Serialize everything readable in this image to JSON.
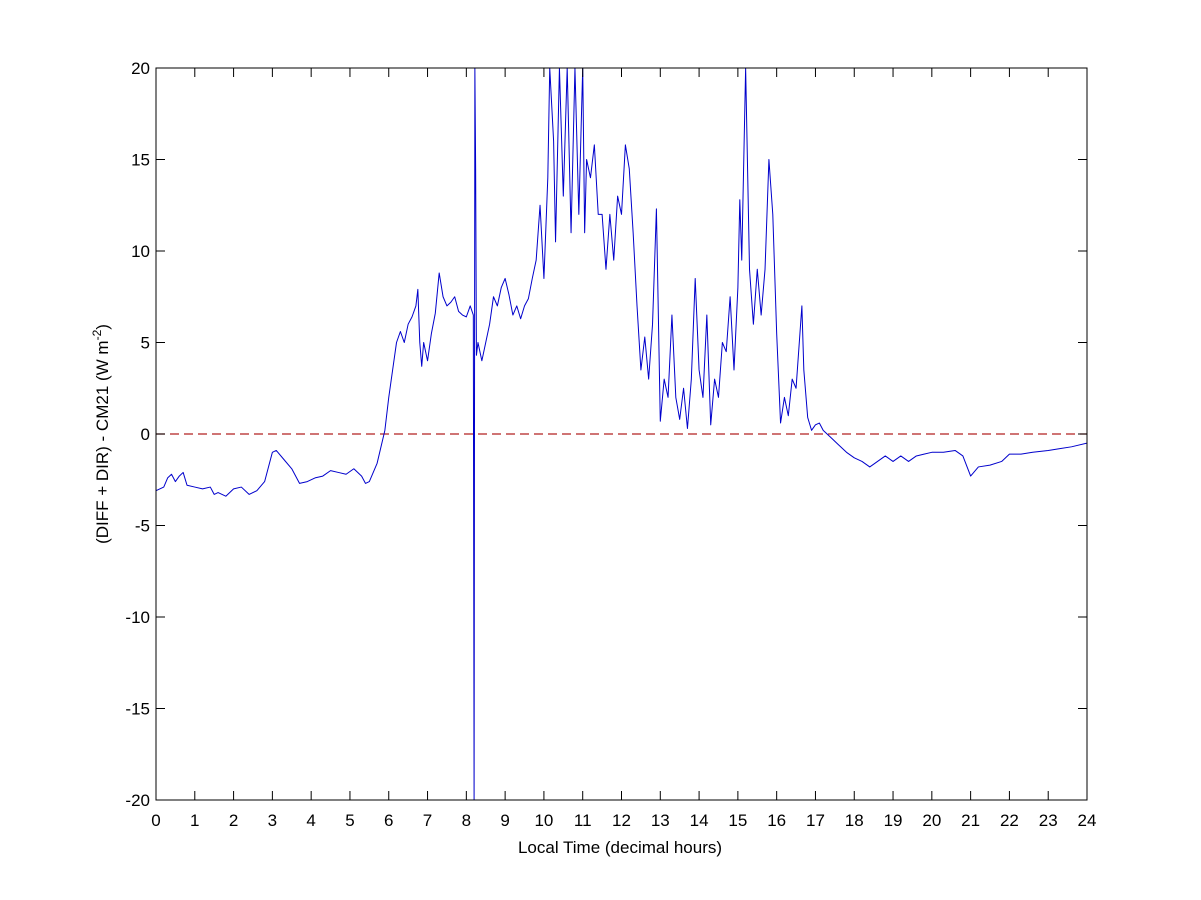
{
  "chart_data": {
    "type": "line",
    "xlabel": "Local Time (decimal hours)",
    "ylabel": {
      "text": "(DIFF + DIR) - CM21 (W m",
      "superscript": "-2",
      "suffix": ")"
    },
    "xlim": [
      0,
      24
    ],
    "ylim": [
      -20,
      20
    ],
    "xticks": [
      0,
      1,
      2,
      3,
      4,
      5,
      6,
      7,
      8,
      9,
      10,
      11,
      12,
      13,
      14,
      15,
      16,
      17,
      18,
      19,
      20,
      21,
      22,
      23,
      24
    ],
    "yticks": [
      -20,
      -15,
      -10,
      -5,
      0,
      5,
      10,
      15,
      20
    ],
    "reference_line": {
      "value": 0,
      "color": "#b22222",
      "style": "dashed"
    },
    "series": [
      {
        "color": "#0000cc",
        "x": [
          0,
          0.2,
          0.3,
          0.4,
          0.5,
          0.6,
          0.7,
          0.8,
          1.0,
          1.2,
          1.4,
          1.5,
          1.6,
          1.8,
          2.0,
          2.2,
          2.4,
          2.6,
          2.8,
          3.0,
          3.1,
          3.3,
          3.5,
          3.7,
          3.9,
          4.1,
          4.3,
          4.5,
          4.7,
          4.9,
          5.1,
          5.3,
          5.4,
          5.5,
          5.7,
          5.9,
          6.0,
          6.1,
          6.2,
          6.3,
          6.4,
          6.5,
          6.6,
          6.7,
          6.75,
          6.8,
          6.85,
          6.9,
          7.0,
          7.1,
          7.2,
          7.3,
          7.4,
          7.5,
          7.6,
          7.7,
          7.8,
          7.9,
          8.0,
          8.1,
          8.18,
          8.2,
          8.22,
          8.24,
          8.26,
          8.3,
          8.4,
          8.5,
          8.6,
          8.7,
          8.8,
          8.9,
          9.0,
          9.1,
          9.2,
          9.3,
          9.4,
          9.5,
          9.6,
          9.7,
          9.8,
          9.9,
          10.0,
          10.1,
          10.15,
          10.25,
          10.3,
          10.4,
          10.5,
          10.6,
          10.7,
          10.8,
          10.9,
          11.0,
          11.05,
          11.1,
          11.2,
          11.3,
          11.4,
          11.5,
          11.6,
          11.7,
          11.8,
          11.9,
          12.0,
          12.1,
          12.2,
          12.3,
          12.4,
          12.5,
          12.6,
          12.7,
          12.8,
          12.9,
          13.0,
          13.1,
          13.2,
          13.3,
          13.4,
          13.5,
          13.6,
          13.7,
          13.8,
          13.9,
          14.0,
          14.1,
          14.2,
          14.3,
          14.4,
          14.5,
          14.6,
          14.7,
          14.8,
          14.9,
          15.0,
          15.05,
          15.1,
          15.2,
          15.3,
          15.4,
          15.5,
          15.6,
          15.7,
          15.8,
          15.9,
          16.0,
          16.1,
          16.2,
          16.3,
          16.4,
          16.5,
          16.6,
          16.65,
          16.7,
          16.8,
          16.9,
          17.0,
          17.1,
          17.2,
          17.4,
          17.6,
          17.8,
          18.0,
          18.2,
          18.4,
          18.6,
          18.8,
          19.0,
          19.2,
          19.4,
          19.6,
          19.8,
          20.0,
          20.3,
          20.6,
          20.8,
          21.0,
          21.2,
          21.5,
          21.8,
          22.0,
          22.3,
          22.6,
          23.0,
          23.3,
          23.6,
          24.0
        ],
        "values": [
          -3.1,
          -2.9,
          -2.4,
          -2.2,
          -2.6,
          -2.3,
          -2.1,
          -2.8,
          -2.9,
          -3.0,
          -2.9,
          -3.3,
          -3.2,
          -3.4,
          -3.0,
          -2.9,
          -3.3,
          -3.1,
          -2.6,
          -1.0,
          -0.9,
          -1.4,
          -1.9,
          -2.7,
          -2.6,
          -2.4,
          -2.3,
          -2.0,
          -2.1,
          -2.2,
          -1.9,
          -2.3,
          -2.7,
          -2.6,
          -1.6,
          0.2,
          2.0,
          3.5,
          5.0,
          5.6,
          5.0,
          6.0,
          6.4,
          7.0,
          7.9,
          5.0,
          3.7,
          5.0,
          4.0,
          5.5,
          6.6,
          8.8,
          7.5,
          7.0,
          7.2,
          7.5,
          6.7,
          6.5,
          6.4,
          7.0,
          6.5,
          -20,
          20,
          14.5,
          4.3,
          5.0,
          4.0,
          5.0,
          6.0,
          7.5,
          7.0,
          8.0,
          8.5,
          7.6,
          6.5,
          7.0,
          6.3,
          7.0,
          7.4,
          8.5,
          9.5,
          12.5,
          8.5,
          14.0,
          20,
          16,
          10.5,
          20,
          13,
          20,
          11,
          20,
          12,
          20,
          11,
          15,
          14,
          15.8,
          12,
          12,
          9.0,
          12,
          9.5,
          13,
          12,
          15.8,
          14.5,
          11,
          7.0,
          3.5,
          5.3,
          3.0,
          6.0,
          12.3,
          0.7,
          3.0,
          2.0,
          6.5,
          2.0,
          0.8,
          2.5,
          0.3,
          3.0,
          8.5,
          3.5,
          2.0,
          6.5,
          0.5,
          3.0,
          2.0,
          5.0,
          4.5,
          7.5,
          3.5,
          8.0,
          12.8,
          9.5,
          20,
          9.0,
          6.0,
          9.0,
          6.5,
          9.0,
          15.0,
          12.0,
          5.5,
          0.6,
          2.0,
          1.0,
          3.0,
          2.5,
          5.5,
          7.0,
          3.5,
          0.9,
          0.2,
          0.5,
          0.6,
          0.2,
          -0.2,
          -0.6,
          -1.0,
          -1.3,
          -1.5,
          -1.8,
          -1.5,
          -1.2,
          -1.5,
          -1.2,
          -1.5,
          -1.2,
          -1.1,
          -1.0,
          -1.0,
          -0.9,
          -1.2,
          -2.3,
          -1.8,
          -1.7,
          -1.5,
          -1.1,
          -1.1,
          -1.0,
          -0.9,
          -0.8,
          -0.7,
          -0.5
        ]
      }
    ]
  }
}
